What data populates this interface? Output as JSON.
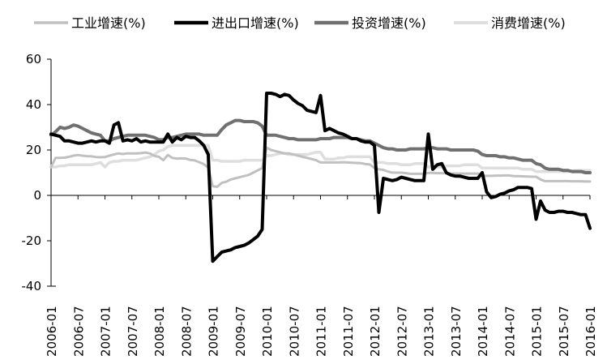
{
  "chart_data": {
    "type": "line",
    "title": "",
    "xlabel": "",
    "ylabel": "",
    "ylim": [
      -40,
      60
    ],
    "yticks": [
      -40,
      -20,
      0,
      20,
      40,
      60
    ],
    "grid": false,
    "legend_position": "top",
    "x": [
      "2006-01",
      "2006-02",
      "2006-03",
      "2006-04",
      "2006-05",
      "2006-06",
      "2006-07",
      "2006-08",
      "2006-09",
      "2006-10",
      "2006-11",
      "2006-12",
      "2007-01",
      "2007-02",
      "2007-03",
      "2007-04",
      "2007-05",
      "2007-06",
      "2007-07",
      "2007-08",
      "2007-09",
      "2007-10",
      "2007-11",
      "2007-12",
      "2008-01",
      "2008-02",
      "2008-03",
      "2008-04",
      "2008-05",
      "2008-06",
      "2008-07",
      "2008-08",
      "2008-09",
      "2008-10",
      "2008-11",
      "2008-12",
      "2009-01",
      "2009-02",
      "2009-03",
      "2009-04",
      "2009-05",
      "2009-06",
      "2009-07",
      "2009-08",
      "2009-09",
      "2009-10",
      "2009-11",
      "2009-12",
      "2010-01",
      "2010-02",
      "2010-03",
      "2010-04",
      "2010-05",
      "2010-06",
      "2010-07",
      "2010-08",
      "2010-09",
      "2010-10",
      "2010-11",
      "2010-12",
      "2011-01",
      "2011-02",
      "2011-03",
      "2011-04",
      "2011-05",
      "2011-06",
      "2011-07",
      "2011-08",
      "2011-09",
      "2011-10",
      "2011-11",
      "2011-12",
      "2012-01",
      "2012-02",
      "2012-03",
      "2012-04",
      "2012-05",
      "2012-06",
      "2012-07",
      "2012-08",
      "2012-09",
      "2012-10",
      "2012-11",
      "2012-12",
      "2013-01",
      "2013-02",
      "2013-03",
      "2013-04",
      "2013-05",
      "2013-06",
      "2013-07",
      "2013-08",
      "2013-09",
      "2013-10",
      "2013-11",
      "2013-12",
      "2014-01",
      "2014-02",
      "2014-03",
      "2014-04",
      "2014-05",
      "2014-06",
      "2014-07",
      "2014-08",
      "2014-09",
      "2014-10",
      "2014-11",
      "2014-12",
      "2015-01",
      "2015-02",
      "2015-03",
      "2015-04",
      "2015-05",
      "2015-06",
      "2015-07",
      "2015-08",
      "2015-09",
      "2015-10",
      "2015-11",
      "2015-12",
      "2016-01"
    ],
    "xtick_labels": [
      "2006-01",
      "2006-07",
      "2007-01",
      "2007-07",
      "2008-01",
      "2008-07",
      "2009-01",
      "2009-07",
      "2010-01",
      "2010-07",
      "2011-01",
      "2011-07",
      "2012-01",
      "2012-07",
      "2013-01",
      "2013-07",
      "2014-01",
      "2014-07",
      "2015-01",
      "2015-07",
      "2016-01"
    ],
    "series": [
      {
        "name": "工业增速(%)",
        "color": "#c0c0c0",
        "values": [
          12.5,
          16.5,
          16.5,
          16.6,
          17.0,
          17.5,
          17.8,
          17.5,
          17.3,
          17.2,
          16.9,
          16.8,
          16.9,
          17.5,
          18.0,
          18.5,
          18.2,
          18.5,
          18.5,
          18.5,
          18.6,
          18.9,
          18.5,
          17.4,
          17.0,
          15.5,
          17.8,
          16.5,
          16.2,
          16.3,
          16.2,
          15.6,
          15.4,
          14.6,
          13.8,
          12.2,
          4.0,
          3.8,
          5.5,
          6.0,
          7.0,
          7.5,
          8.0,
          8.5,
          9.0,
          10.0,
          11.0,
          12.0,
          21.0,
          20.0,
          19.5,
          19.0,
          18.5,
          18.5,
          18.0,
          17.5,
          17.0,
          16.5,
          16.0,
          15.5,
          14.5,
          14.5,
          14.5,
          14.5,
          14.5,
          14.6,
          14.5,
          14.4,
          14.3,
          14.2,
          13.8,
          13.6,
          12.0,
          11.5,
          11.2,
          10.5,
          10.0,
          10.0,
          10.0,
          9.8,
          9.5,
          9.5,
          9.5,
          9.5,
          9.9,
          9.9,
          9.8,
          9.8,
          9.7,
          9.6,
          9.6,
          9.6,
          9.6,
          9.6,
          9.6,
          9.6,
          8.6,
          8.6,
          8.6,
          8.7,
          8.7,
          8.8,
          8.8,
          8.5,
          8.5,
          8.4,
          8.3,
          8.2,
          8.2,
          7.0,
          6.3,
          6.3,
          6.3,
          6.3,
          6.3,
          6.3,
          6.2,
          6.2,
          6.2,
          6.1,
          6.1
        ]
      },
      {
        "name": "进出口增速(%)",
        "color": "#000000",
        "values": [
          27.0,
          26.5,
          26.0,
          24.0,
          24.0,
          23.5,
          23.0,
          23.0,
          23.5,
          24.0,
          23.5,
          24.0,
          24.0,
          23.0,
          31.0,
          32.0,
          24.0,
          24.5,
          24.0,
          25.0,
          23.5,
          24.0,
          23.5,
          23.5,
          23.5,
          23.5,
          27.0,
          23.5,
          25.5,
          24.5,
          26.0,
          25.5,
          25.5,
          24.0,
          22.0,
          18.0,
          -29.0,
          -27.0,
          -25.0,
          -24.5,
          -24.0,
          -23.0,
          -22.5,
          -22.0,
          -21.0,
          -19.5,
          -18.0,
          -15.0,
          45.0,
          45.0,
          44.5,
          43.5,
          44.5,
          44.0,
          42.0,
          40.5,
          39.5,
          37.5,
          37.0,
          36.5,
          44.0,
          28.5,
          29.5,
          28.5,
          27.5,
          27.0,
          26.0,
          25.0,
          25.0,
          24.0,
          23.5,
          23.5,
          22.0,
          -7.5,
          7.5,
          7.0,
          6.5,
          7.0,
          8.0,
          7.5,
          7.0,
          6.5,
          6.5,
          6.5,
          27.0,
          11.5,
          13.5,
          14.0,
          10.0,
          9.0,
          8.5,
          8.5,
          8.0,
          7.5,
          7.5,
          7.5,
          10.0,
          1.5,
          -1.0,
          -0.5,
          0.5,
          1.0,
          2.0,
          2.5,
          3.5,
          3.5,
          3.5,
          3.0,
          -10.5,
          -2.5,
          -6.5,
          -7.5,
          -7.5,
          -7.0,
          -7.0,
          -7.5,
          -7.5,
          -8.0,
          -8.5,
          -8.5,
          -14.5
        ]
      },
      {
        "name": "投资增速(%)",
        "color": "#707070",
        "values": [
          26.5,
          28.0,
          30.0,
          29.5,
          30.0,
          31.0,
          30.5,
          29.5,
          28.5,
          27.5,
          27.0,
          26.5,
          24.0,
          24.0,
          25.0,
          25.5,
          26.0,
          26.5,
          26.5,
          26.5,
          26.5,
          26.5,
          26.0,
          25.5,
          24.5,
          24.5,
          25.5,
          25.5,
          26.0,
          26.5,
          27.0,
          27.0,
          27.0,
          27.0,
          26.5,
          26.5,
          26.5,
          26.5,
          29.0,
          31.0,
          32.0,
          33.0,
          33.0,
          32.5,
          32.5,
          32.5,
          32.0,
          30.5,
          26.5,
          26.5,
          26.5,
          26.0,
          25.5,
          25.0,
          25.0,
          24.5,
          24.5,
          24.5,
          24.5,
          24.5,
          25.0,
          25.0,
          25.0,
          25.5,
          25.5,
          25.5,
          25.5,
          25.0,
          25.0,
          24.5,
          24.0,
          24.0,
          23.0,
          22.0,
          21.0,
          20.5,
          20.5,
          20.0,
          20.0,
          20.0,
          20.5,
          20.5,
          20.5,
          20.5,
          21.0,
          21.0,
          20.5,
          20.5,
          20.5,
          20.0,
          20.0,
          20.0,
          20.0,
          20.0,
          20.0,
          19.5,
          18.0,
          17.5,
          17.5,
          17.5,
          17.0,
          17.0,
          16.5,
          16.5,
          16.0,
          15.5,
          15.5,
          15.5,
          14.0,
          13.5,
          12.0,
          11.5,
          11.5,
          11.5,
          11.0,
          11.0,
          10.5,
          10.5,
          10.5,
          10.0,
          10.0
        ]
      },
      {
        "name": "消费增速(%)",
        "color": "#dedede",
        "values": [
          12.5,
          12.5,
          13.0,
          13.0,
          13.5,
          13.5,
          13.5,
          13.5,
          13.5,
          13.5,
          14.0,
          14.5,
          12.5,
          14.5,
          15.0,
          15.0,
          15.5,
          15.5,
          15.5,
          15.5,
          16.0,
          16.5,
          17.0,
          18.0,
          19.5,
          20.0,
          21.5,
          22.0,
          22.0,
          22.0,
          22.0,
          22.0,
          22.0,
          22.0,
          22.0,
          22.0,
          15.5,
          15.5,
          15.0,
          15.0,
          15.0,
          15.0,
          15.0,
          15.5,
          15.5,
          15.5,
          15.5,
          15.5,
          17.5,
          17.5,
          18.0,
          18.5,
          18.5,
          18.0,
          18.0,
          18.0,
          18.0,
          18.0,
          18.5,
          19.0,
          19.0,
          16.0,
          16.0,
          16.0,
          16.5,
          16.5,
          17.0,
          17.0,
          17.0,
          17.0,
          17.0,
          17.0,
          14.5,
          14.5,
          14.5,
          14.0,
          14.0,
          14.0,
          13.5,
          13.5,
          13.5,
          14.0,
          14.0,
          14.0,
          12.5,
          12.5,
          12.5,
          12.5,
          13.0,
          13.0,
          13.0,
          13.0,
          13.5,
          13.5,
          13.5,
          13.5,
          12.0,
          12.0,
          12.0,
          12.0,
          12.0,
          12.0,
          12.0,
          12.0,
          12.0,
          11.5,
          11.5,
          11.5,
          10.5,
          10.5,
          10.5,
          10.5,
          10.5,
          10.5,
          10.5,
          10.5,
          10.8,
          11.0,
          11.0,
          11.0,
          11.0
        ]
      }
    ]
  }
}
